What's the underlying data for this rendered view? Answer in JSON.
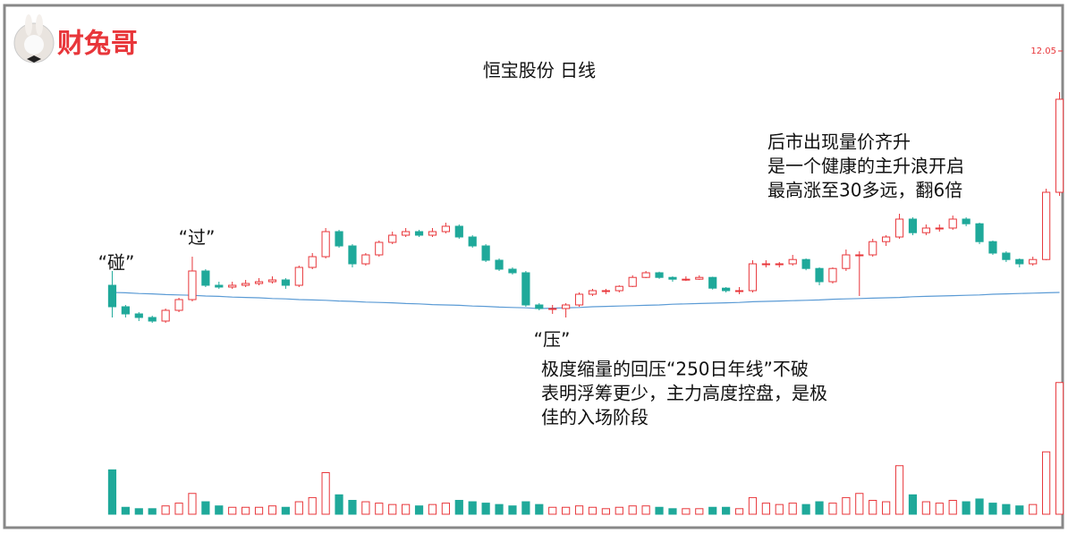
{
  "logo": "财兔哥",
  "chart_data": {
    "type": "candlestick",
    "title": "恒宝股份  日线",
    "ylim": [
      2,
      12.05
    ],
    "yticks": [
      12.05
    ],
    "volume_lim": [
      0,
      100
    ],
    "up_color": "#e8363a",
    "down_color": "#1fa99a",
    "ma_color": "#5b9bd5",
    "ohlc": [
      [
        5.5,
        5.9,
        4.6,
        4.9
      ],
      [
        4.9,
        4.95,
        4.6,
        4.7
      ],
      [
        4.7,
        4.75,
        4.5,
        4.6
      ],
      [
        4.6,
        4.65,
        4.45,
        4.5
      ],
      [
        4.5,
        4.85,
        4.45,
        4.8
      ],
      [
        4.8,
        5.15,
        4.75,
        5.1
      ],
      [
        5.1,
        6.3,
        5.05,
        5.9
      ],
      [
        5.9,
        5.95,
        5.45,
        5.5
      ],
      [
        5.5,
        5.6,
        5.4,
        5.45
      ],
      [
        5.45,
        5.6,
        5.4,
        5.5
      ],
      [
        5.5,
        5.65,
        5.45,
        5.55
      ],
      [
        5.55,
        5.7,
        5.5,
        5.6
      ],
      [
        5.6,
        5.75,
        5.55,
        5.65
      ],
      [
        5.65,
        5.7,
        5.4,
        5.5
      ],
      [
        5.5,
        6.05,
        5.45,
        6.0
      ],
      [
        6.0,
        6.4,
        5.95,
        6.3
      ],
      [
        6.3,
        7.1,
        6.25,
        7.0
      ],
      [
        7.0,
        7.05,
        6.55,
        6.6
      ],
      [
        6.6,
        6.65,
        6.0,
        6.1
      ],
      [
        6.1,
        6.4,
        6.05,
        6.35
      ],
      [
        6.35,
        6.75,
        6.3,
        6.7
      ],
      [
        6.7,
        7.0,
        6.65,
        6.9
      ],
      [
        6.9,
        7.1,
        6.85,
        7.0
      ],
      [
        7.0,
        7.05,
        6.85,
        6.9
      ],
      [
        6.9,
        7.1,
        6.85,
        7.0
      ],
      [
        7.0,
        7.25,
        6.95,
        7.15
      ],
      [
        7.15,
        7.2,
        6.8,
        6.85
      ],
      [
        6.85,
        6.9,
        6.55,
        6.6
      ],
      [
        6.6,
        6.65,
        6.15,
        6.2
      ],
      [
        6.2,
        6.25,
        5.9,
        5.95
      ],
      [
        5.95,
        6.0,
        5.8,
        5.85
      ],
      [
        5.85,
        5.9,
        4.9,
        4.95
      ],
      [
        4.95,
        5.0,
        4.8,
        4.85
      ],
      [
        4.85,
        4.95,
        4.7,
        4.85
      ],
      [
        4.85,
        5.0,
        4.6,
        4.95
      ],
      [
        4.95,
        5.3,
        4.9,
        5.25
      ],
      [
        5.25,
        5.4,
        5.2,
        5.35
      ],
      [
        5.35,
        5.4,
        5.25,
        5.35
      ],
      [
        5.35,
        5.5,
        5.3,
        5.47
      ],
      [
        5.47,
        5.78,
        5.45,
        5.72
      ],
      [
        5.72,
        5.9,
        5.7,
        5.85
      ],
      [
        5.85,
        5.88,
        5.68,
        5.72
      ],
      [
        5.72,
        5.75,
        5.6,
        5.67
      ],
      [
        5.67,
        5.75,
        5.62,
        5.67
      ],
      [
        5.67,
        5.78,
        5.65,
        5.72
      ],
      [
        5.72,
        5.74,
        5.38,
        5.42
      ],
      [
        5.42,
        5.45,
        5.3,
        5.35
      ],
      [
        5.35,
        5.45,
        5.25,
        5.35
      ],
      [
        5.35,
        6.2,
        5.3,
        6.1
      ],
      [
        6.1,
        6.2,
        6.0,
        6.1
      ],
      [
        6.1,
        6.15,
        6.0,
        6.1
      ],
      [
        6.1,
        6.35,
        6.05,
        6.22
      ],
      [
        6.22,
        6.25,
        5.92,
        5.97
      ],
      [
        5.97,
        6.0,
        5.5,
        5.6
      ],
      [
        5.6,
        6.0,
        5.55,
        5.97
      ],
      [
        5.97,
        6.5,
        5.9,
        6.35
      ],
      [
        6.35,
        6.45,
        5.2,
        6.35
      ],
      [
        6.35,
        6.8,
        6.3,
        6.72
      ],
      [
        6.72,
        6.9,
        6.6,
        6.85
      ],
      [
        6.85,
        7.5,
        6.8,
        7.35
      ],
      [
        7.35,
        7.4,
        6.9,
        6.97
      ],
      [
        6.97,
        7.2,
        6.9,
        7.1
      ],
      [
        7.1,
        7.2,
        7.0,
        7.1
      ],
      [
        7.1,
        7.45,
        7.05,
        7.35
      ],
      [
        7.35,
        7.4,
        7.15,
        7.22
      ],
      [
        7.22,
        7.25,
        6.65,
        6.72
      ],
      [
        6.72,
        6.75,
        6.35,
        6.4
      ],
      [
        6.4,
        6.45,
        6.15,
        6.22
      ],
      [
        6.22,
        6.25,
        6.0,
        6.1
      ],
      [
        6.1,
        6.3,
        6.05,
        6.22
      ],
      [
        6.22,
        8.2,
        6.2,
        8.1
      ],
      [
        8.1,
        10.9,
        8.0,
        10.7
      ]
    ],
    "volume": [
      32,
      5,
      4,
      4,
      6,
      8,
      15,
      9,
      6,
      5,
      5,
      5,
      6,
      5,
      9,
      12,
      30,
      14,
      10,
      9,
      8,
      7,
      7,
      6,
      7,
      8,
      10,
      9,
      8,
      7,
      6,
      9,
      7,
      5,
      5,
      6,
      5,
      4,
      5,
      6,
      6,
      5,
      4,
      4,
      4,
      5,
      5,
      4,
      12,
      8,
      7,
      8,
      7,
      9,
      8,
      12,
      15,
      10,
      9,
      35,
      14,
      9,
      8,
      10,
      9,
      11,
      8,
      7,
      6,
      7,
      45,
      95
    ],
    "ma": [
      5.3,
      5.29,
      5.27,
      5.26,
      5.24,
      5.23,
      5.22,
      5.2,
      5.19,
      5.17,
      5.16,
      5.15,
      5.13,
      5.12,
      5.1,
      5.09,
      5.08,
      5.06,
      5.05,
      5.03,
      5.02,
      5.01,
      4.99,
      4.98,
      4.96,
      4.95,
      4.94,
      4.92,
      4.91,
      4.89,
      4.88,
      4.87,
      4.85,
      4.86,
      4.87,
      4.88,
      4.9,
      4.91,
      4.92,
      4.93,
      4.94,
      4.95,
      4.97,
      4.98,
      4.99,
      5.0,
      5.01,
      5.02,
      5.04,
      5.05,
      5.06,
      5.07,
      5.08,
      5.09,
      5.11,
      5.12,
      5.13,
      5.14,
      5.15,
      5.16,
      5.18,
      5.19,
      5.2,
      5.21,
      5.22,
      5.23,
      5.25,
      5.26,
      5.27,
      5.28,
      5.29,
      5.3
    ],
    "annotations": {
      "touch": "“碰”",
      "cross": "“过”",
      "press": "“压”",
      "note_right": [
        "后市出现量价齐升",
        "是一个健康的主升浪开启",
        "最高涨至30多远，翻6倍"
      ],
      "note_bottom": [
        "极度缩量的回压“250日年线”不破",
        "表明浮筹更少，主力高度控盘，是极",
        "佳的入场阶段"
      ]
    }
  }
}
